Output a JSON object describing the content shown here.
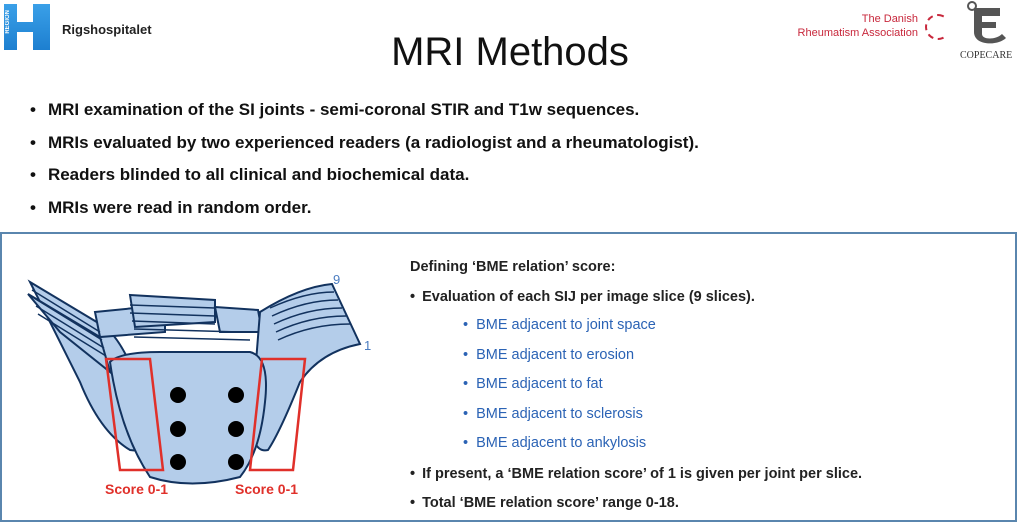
{
  "header": {
    "left_logo_text": "Rigshospitalet",
    "left_logo_vertical": "REGION",
    "right_logo_line1": "The Danish",
    "right_logo_line2": "Rheumatism Association",
    "copecare": "COPECARE"
  },
  "title": "MRI Methods",
  "bullets": [
    "MRI examination of the SI joints - semi-coronal STIR and T1w sequences.",
    "MRIs evaluated by two experienced readers (a radiologist and a rheumatologist).",
    "Readers blinded to all clinical and biochemical data.",
    "MRIs were read in random order."
  ],
  "figure": {
    "slice_top": "9",
    "slice_bottom": "1",
    "left_score": "Score 0-1",
    "right_score": "Score 0-1"
  },
  "definition": {
    "heading": "Defining ‘BME relation’ score:",
    "intro": "Evaluation of each SIJ per image slice (9 slices).",
    "items": [
      "BME adjacent to joint space",
      "BME adjacent to erosion",
      "BME adjacent to fat",
      "BME adjacent to sclerosis",
      "BME adjacent to ankylosis"
    ],
    "note1": "If present, a ‘BME relation score’ of 1 is given per joint per slice.",
    "note2": "Total ‘BME relation score’ range 0-18."
  },
  "colors": {
    "accent_blue": "#2b63b5",
    "score_red": "#e0302a",
    "box_border": "#5a86ae"
  }
}
